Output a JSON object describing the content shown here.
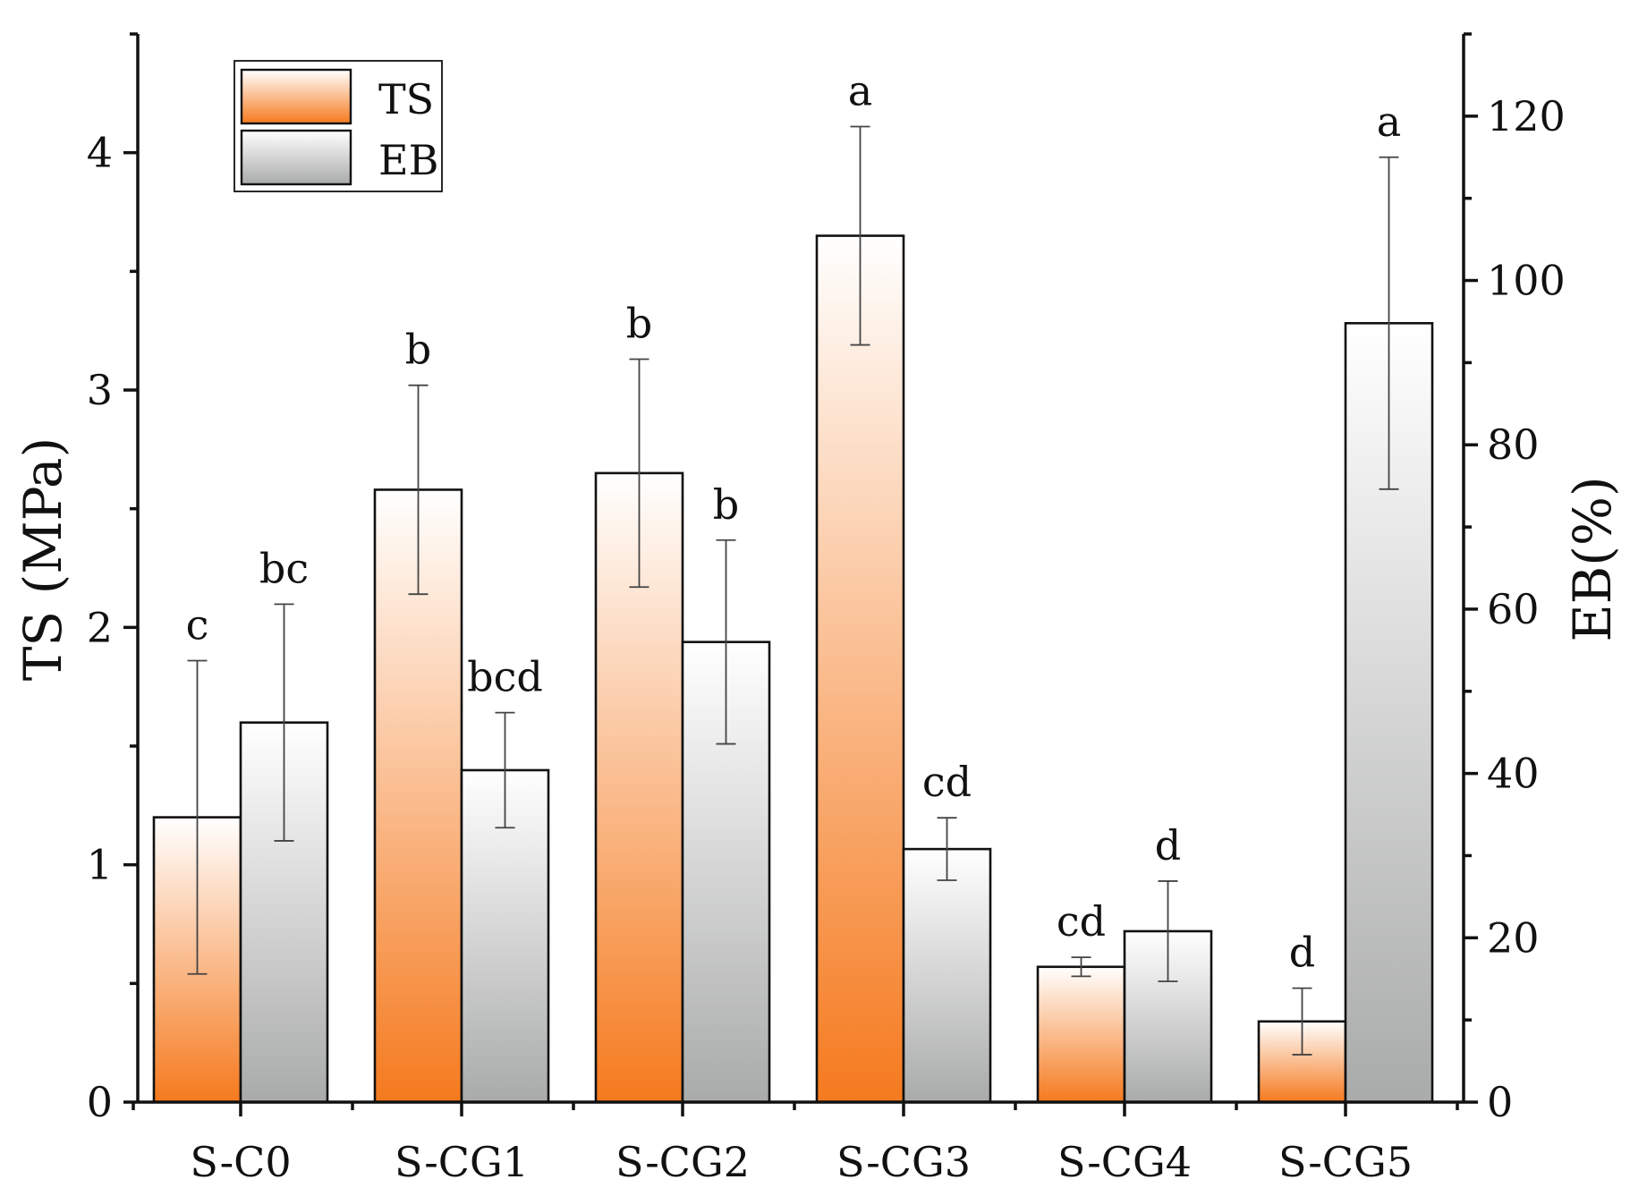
{
  "chart_data": {
    "type": "bar",
    "categories": [
      "S-C0",
      "S-CG1",
      "S-CG2",
      "S-CG3",
      "S-CG4",
      "S-CG5"
    ],
    "series": [
      {
        "name": "TS",
        "axis": "left",
        "values": [
          1.2,
          2.58,
          2.65,
          3.65,
          0.57,
          0.34
        ],
        "error": [
          0.66,
          0.44,
          0.48,
          0.46,
          0.04,
          0.14
        ],
        "significance": [
          "c",
          "b",
          "b",
          "a",
          "cd",
          "d"
        ],
        "color_top": "#ffffff",
        "color_bottom": "#f57a1e"
      },
      {
        "name": "EB",
        "axis": "right",
        "values": [
          46.2,
          40.4,
          56.0,
          30.8,
          20.8,
          94.8
        ],
        "error": [
          14.4,
          7.0,
          12.4,
          3.8,
          6.1,
          20.2
        ],
        "significance": [
          "bc",
          "bcd",
          "b",
          "cd",
          "d",
          "a"
        ],
        "color_top": "#ffffff",
        "color_bottom": "#a9abaa"
      }
    ],
    "ylabel_left": "TS (MPa)",
    "ylabel_right": "EB(%)",
    "xlabel": "",
    "ylim_left": [
      0,
      4.5
    ],
    "ylim_right": [
      0,
      130
    ],
    "yticks_left": [
      0,
      1,
      2,
      3,
      4
    ],
    "yticks_right": [
      0,
      20,
      40,
      60,
      80,
      100,
      120
    ],
    "legend": [
      "TS",
      "EB"
    ],
    "legend_position": "top-left",
    "grid": false
  }
}
